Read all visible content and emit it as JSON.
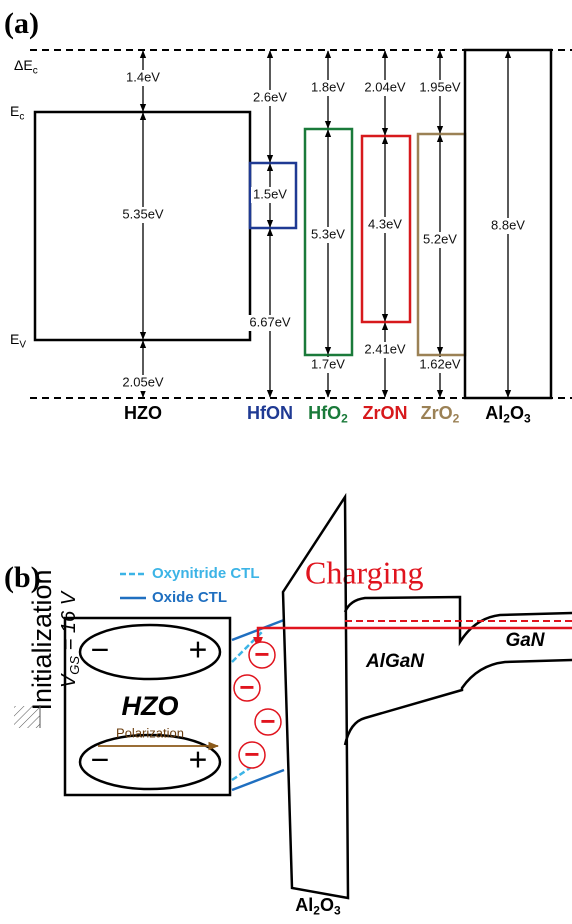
{
  "panel_a": {
    "label": "(a)",
    "delta_ec": [
      [
        "ΔE",
        "c"
      ]
    ],
    "ec": [
      [
        "E",
        "c"
      ]
    ],
    "ev": [
      [
        "E",
        "V"
      ]
    ],
    "materials": [
      {
        "name": [
          [
            "HZO"
          ]
        ],
        "color": "#000000",
        "top": "1.4eV",
        "gap": "5.35eV",
        "bottom": "2.05eV"
      },
      {
        "name": [
          [
            "HfON"
          ]
        ],
        "color": "#1f3a93",
        "top": "2.6eV",
        "gap": "1.5eV",
        "bottom": "6.67eV"
      },
      {
        "name": [
          [
            "HfO",
            "2"
          ]
        ],
        "color": "#1a7a3a",
        "top": "1.8eV",
        "gap": "5.3eV",
        "bottom": "1.7eV"
      },
      {
        "name": [
          [
            "ZrON"
          ]
        ],
        "color": "#d7191c",
        "top": "2.04eV",
        "gap": "4.3eV",
        "bottom": "2.41eV"
      },
      {
        "name": [
          [
            "ZrO",
            "2"
          ]
        ],
        "color": "#9b8155",
        "top": "1.95eV",
        "gap": "5.2eV",
        "bottom": "1.62eV"
      },
      {
        "name": [
          [
            "Al",
            "2"
          ],
          [
            "O",
            "3"
          ]
        ],
        "color": "#000000",
        "gap": "8.8eV"
      }
    ]
  },
  "panel_b": {
    "label": "(b)",
    "legend": [
      "Oxynitride CTL",
      "Oxide CTL"
    ],
    "charging": "Charging",
    "initialization": "Initialization",
    "vgs": [
      [
        "V",
        "GS"
      ],
      [
        " = 16 V"
      ]
    ],
    "hzo": "HZO",
    "polarization": "Polarization",
    "dipoles": [
      {
        "minus": "−",
        "plus": "+"
      },
      {
        "minus": "−",
        "plus": "+"
      }
    ],
    "electrons": [
      "−",
      "−",
      "−",
      "−"
    ],
    "algan": "AlGaN",
    "gan": "GaN",
    "al2o3": [
      [
        "Al",
        "2"
      ],
      [
        "O",
        "3"
      ]
    ]
  }
}
